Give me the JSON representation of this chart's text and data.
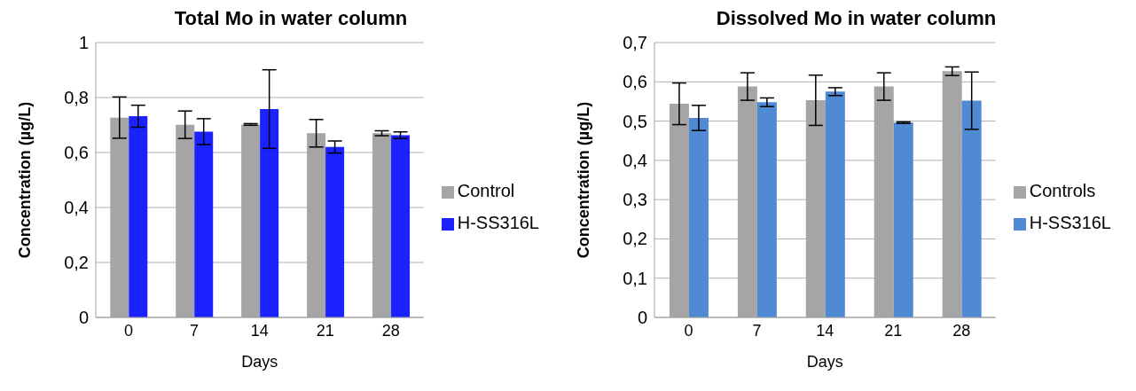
{
  "chart_data": [
    {
      "type": "bar",
      "title": "Total Mo in water column",
      "xlabel": "Days",
      "ylabel": "Concentration (µg/L)",
      "categories": [
        "0",
        "7",
        "14",
        "21",
        "28"
      ],
      "series": [
        {
          "name": "Control",
          "color": "#a5a5a5",
          "values": [
            0.727,
            0.701,
            0.702,
            0.67,
            0.67
          ],
          "errors": [
            0.075,
            0.05,
            0.003,
            0.05,
            0.009
          ]
        },
        {
          "name": "H-SS316L",
          "color": "#1a22ff",
          "values": [
            0.732,
            0.676,
            0.758,
            0.62,
            0.663
          ],
          "errors": [
            0.04,
            0.047,
            0.143,
            0.022,
            0.012
          ]
        }
      ],
      "ylim": [
        0,
        1
      ],
      "yticks": [
        {
          "value": 0,
          "label": "0"
        },
        {
          "value": 0.2,
          "label": "0,2"
        },
        {
          "value": 0.4,
          "label": "0,4"
        },
        {
          "value": 0.6,
          "label": "0,6"
        },
        {
          "value": 0.8,
          "label": "0,8"
        },
        {
          "value": 1,
          "label": "1"
        }
      ],
      "grid": "y",
      "legend": "right"
    },
    {
      "type": "bar",
      "title": "Dissolved Mo in water column",
      "xlabel": "Days",
      "ylabel": "Concentration (µg/L)",
      "categories": [
        "0",
        "7",
        "14",
        "21",
        "28"
      ],
      "series": [
        {
          "name": "Controls",
          "color": "#a5a5a5",
          "values": [
            0.544,
            0.588,
            0.553,
            0.588,
            0.627
          ],
          "errors": [
            0.053,
            0.035,
            0.064,
            0.035,
            0.011
          ]
        },
        {
          "name": "H-SS316L",
          "color": "#518ad4",
          "values": [
            0.508,
            0.548,
            0.575,
            0.496,
            0.552
          ],
          "errors": [
            0.032,
            0.011,
            0.01,
            0.002,
            0.073
          ]
        }
      ],
      "ylim": [
        0,
        0.7
      ],
      "yticks": [
        {
          "value": 0,
          "label": "0"
        },
        {
          "value": 0.1,
          "label": "0,1"
        },
        {
          "value": 0.2,
          "label": "0,2"
        },
        {
          "value": 0.3,
          "label": "0,3"
        },
        {
          "value": 0.4,
          "label": "0,4"
        },
        {
          "value": 0.5,
          "label": "0,5"
        },
        {
          "value": 0.6,
          "label": "0,6"
        },
        {
          "value": 0.7,
          "label": "0,7"
        }
      ],
      "grid": "y",
      "legend": "right"
    }
  ]
}
